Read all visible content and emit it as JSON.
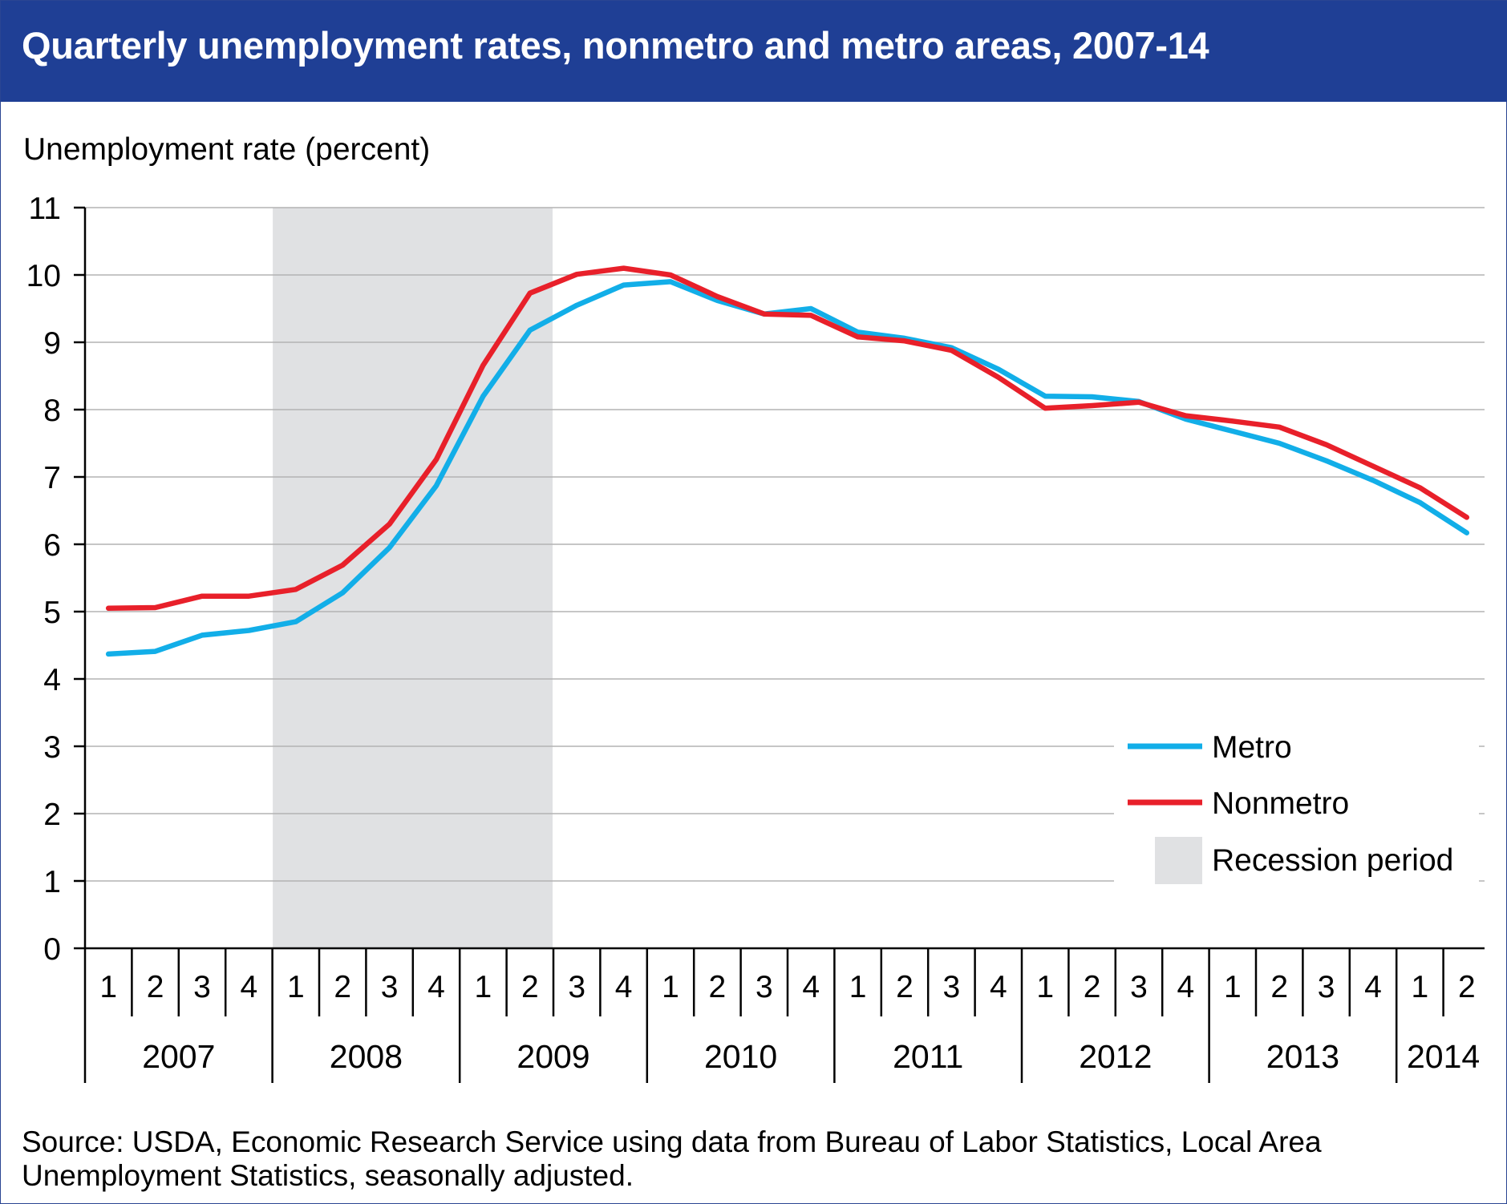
{
  "title": "Quarterly unemployment rates, nonmetro and metro areas, 2007-14",
  "source": "Source: USDA, Economic Research Service using data from Bureau of Labor Statistics, Local Area Unemployment Statistics, seasonally adjusted.",
  "colors": {
    "header_bg": "#1f3f95",
    "metro": "#12aee8",
    "nonmetro": "#e8202a",
    "recession": "#e0e1e3",
    "grid": "#b3b3b3"
  },
  "chart_data": {
    "type": "line",
    "ylabel": "Unemployment rate (percent)",
    "ylim": [
      0,
      11
    ],
    "yticks": [
      "0",
      "1",
      "2",
      "3",
      "4",
      "5",
      "6",
      "7",
      "8",
      "9",
      "10",
      "11"
    ],
    "grid": true,
    "legend_position": "right",
    "years": [
      "2007",
      "2008",
      "2009",
      "2010",
      "2011",
      "2012",
      "2013",
      "2014"
    ],
    "quarters": [
      "1",
      "2",
      "3",
      "4",
      "1",
      "2",
      "3",
      "4",
      "1",
      "2",
      "3",
      "4",
      "1",
      "2",
      "3",
      "4",
      "1",
      "2",
      "3",
      "4",
      "1",
      "2",
      "3",
      "4",
      "1",
      "2",
      "3",
      "4",
      "1",
      "2"
    ],
    "recession": {
      "label": "Recession period",
      "start": "2008 Q1",
      "end": "2009 Q2"
    },
    "series": [
      {
        "name": "Metro",
        "color": "#12aee8",
        "values": [
          4.37,
          4.41,
          4.65,
          4.72,
          4.85,
          5.28,
          5.95,
          6.87,
          8.2,
          9.18,
          9.55,
          9.85,
          9.9,
          9.62,
          9.42,
          9.5,
          9.15,
          9.06,
          8.92,
          8.6,
          8.2,
          8.19,
          8.12,
          7.86,
          7.68,
          7.5,
          7.24,
          6.95,
          6.62,
          6.17
        ]
      },
      {
        "name": "Nonmetro",
        "color": "#e8202a",
        "values": [
          5.05,
          5.06,
          5.23,
          5.23,
          5.33,
          5.69,
          6.3,
          7.26,
          8.66,
          9.73,
          10.01,
          10.1,
          10.0,
          9.68,
          9.42,
          9.4,
          9.08,
          9.02,
          8.88,
          8.48,
          8.02,
          8.06,
          8.11,
          7.91,
          7.83,
          7.74,
          7.48,
          7.16,
          6.84,
          6.4
        ]
      }
    ]
  }
}
